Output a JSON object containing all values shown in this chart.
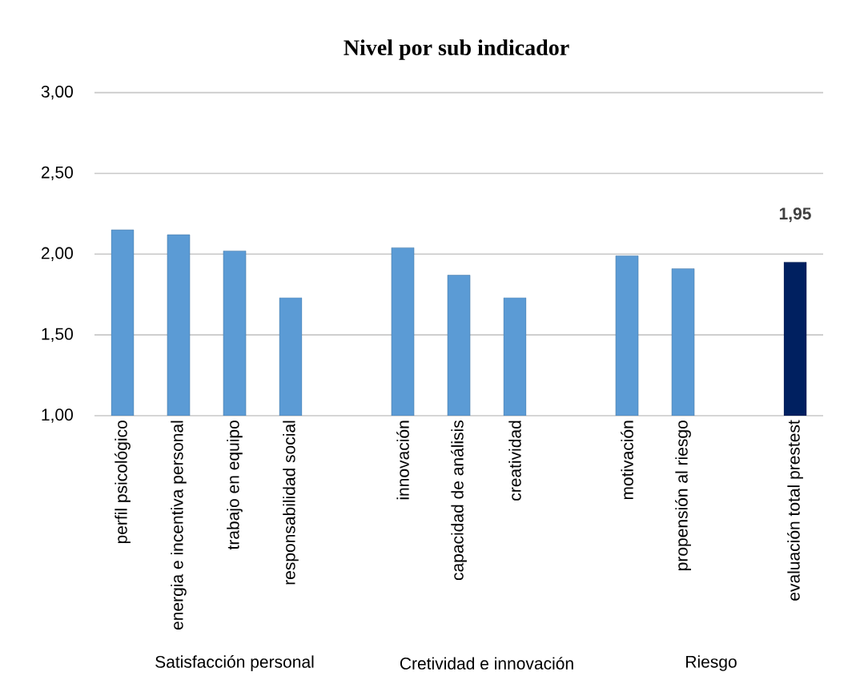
{
  "chart_data": {
    "type": "bar",
    "title": "Nivel por sub indicador",
    "categories": [
      "perfil psicológico",
      "energia e incentiva personal",
      "trabajo en equipo",
      "responsabilidad social",
      null,
      "innovación",
      "capacidad de análisis",
      "creatividad",
      null,
      "motivación",
      "propensión al riesgo",
      null,
      "evaluación total prestest"
    ],
    "values": [
      2.15,
      2.12,
      2.02,
      1.73,
      null,
      2.04,
      1.87,
      1.73,
      null,
      1.99,
      1.91,
      null,
      1.95
    ],
    "colors": [
      "#5b9bd5",
      "#5b9bd5",
      "#5b9bd5",
      "#5b9bd5",
      null,
      "#5b9bd5",
      "#5b9bd5",
      "#5b9bd5",
      null,
      "#5b9bd5",
      "#5b9bd5",
      null,
      "#002060"
    ],
    "value_labels": [
      null,
      null,
      null,
      null,
      null,
      null,
      null,
      null,
      null,
      null,
      null,
      null,
      "1,95"
    ],
    "ylim": [
      1,
      3
    ],
    "yticks": [
      {
        "value": 1,
        "label": "1,00"
      },
      {
        "value": 1.5,
        "label": "1,50"
      },
      {
        "value": 2,
        "label": "2,00"
      },
      {
        "value": 2.5,
        "label": "2,50"
      },
      {
        "value": 3,
        "label": "3,00"
      }
    ],
    "grid": "y",
    "annotations": [
      "Satisfacción personal",
      "Cretividad e innovación",
      "Riesgo"
    ]
  }
}
